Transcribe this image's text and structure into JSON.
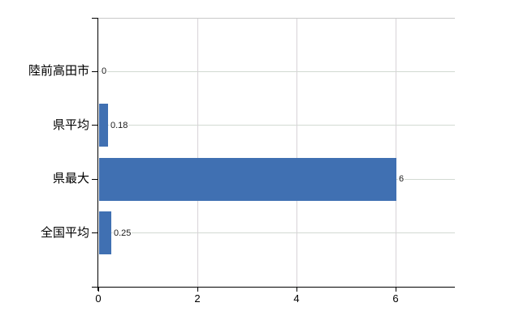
{
  "chart_data": {
    "type": "bar",
    "orientation": "horizontal",
    "title": "",
    "xlabel": "",
    "ylabel": "",
    "categories": [
      "陸前高田市",
      "県平均",
      "県最大",
      "全国平均"
    ],
    "values": [
      0,
      0.18,
      6,
      0.25
    ],
    "data_labels": [
      "0",
      "0.18",
      "6",
      "0.25"
    ],
    "x_tick_labels": [
      "0",
      "2",
      "4",
      "6"
    ],
    "x_tick_values": [
      0,
      2,
      4,
      6
    ],
    "xlim": [
      0,
      7.2
    ],
    "grid": true,
    "legend": false,
    "colors": {
      "bar": "#4070b2",
      "axis": "#000000",
      "plot_top_border": "#c9c9c9",
      "vertical_grid": "#d7d3d7",
      "horizontal_grid": "#d2dad2",
      "category_text": "#000000",
      "tick_text": "#000000",
      "data_label_text": "#1a1a1a",
      "background": "#ffffff"
    }
  }
}
